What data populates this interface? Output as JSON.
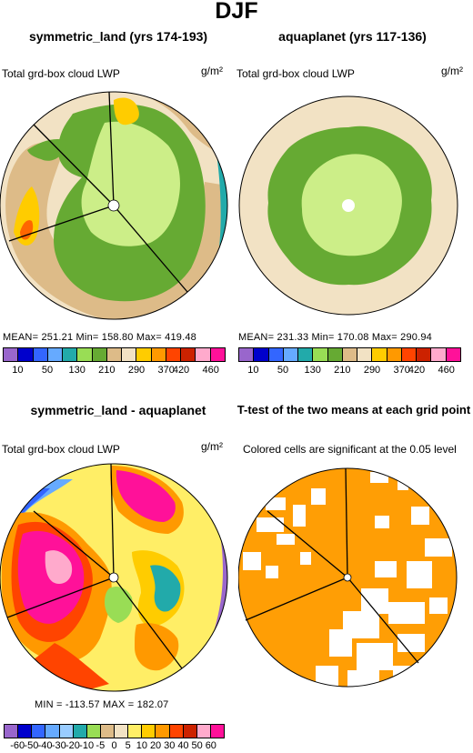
{
  "title": "DJF",
  "panels": {
    "tl": {
      "title": "symmetric_land (yrs 174-193)",
      "left_label": "Total grd-box cloud LWP",
      "units": "g/m²",
      "stats": "MEAN= 251.21   Min= 158.80   Max= 419.48"
    },
    "tr": {
      "title": "aquaplanet (yrs 117-136)",
      "left_label": "Total grd-box cloud LWP",
      "units": "g/m²",
      "stats": "MEAN= 231.33   Min= 170.08   Max= 290.94"
    },
    "bl": {
      "title": "symmetric_land - aquaplanet",
      "left_label": "Total grd-box cloud LWP",
      "units": "g/m²",
      "stats": "MIN = -113.57  MAX = 182.07"
    },
    "br": {
      "title": "T-test of the two means at each grid point",
      "subtitle": "Colored cells are significant at the 0.05 level"
    }
  },
  "colorbar_top": {
    "colors": [
      "#9966cc",
      "#0000cc",
      "#3366ff",
      "#66aaff",
      "#22aaaa",
      "#99dd55",
      "#66aa33",
      "#ddbb88",
      "#f2e2c4",
      "#ffcc00",
      "#ff9900",
      "#ff4400",
      "#cc2200",
      "#ffaacc",
      "#ff1199"
    ],
    "labels": [
      "10",
      "50",
      "130",
      "210",
      "290",
      "370",
      "420",
      "460"
    ]
  },
  "colorbar_bottom": {
    "colors": [
      "#9966cc",
      "#0000cc",
      "#3366ff",
      "#66aaff",
      "#99ccff",
      "#22aaaa",
      "#99dd55",
      "#ddbb88",
      "#f2e2c4",
      "#ffee66",
      "#ffcc00",
      "#ff9900",
      "#ff4400",
      "#cc2200",
      "#ffaacc",
      "#ff1199"
    ],
    "labels": [
      "-60",
      "-50",
      "-40",
      "-30",
      "-20",
      "-10",
      "-5",
      "0",
      "5",
      "10",
      "20",
      "30",
      "40",
      "50",
      "60"
    ]
  }
}
